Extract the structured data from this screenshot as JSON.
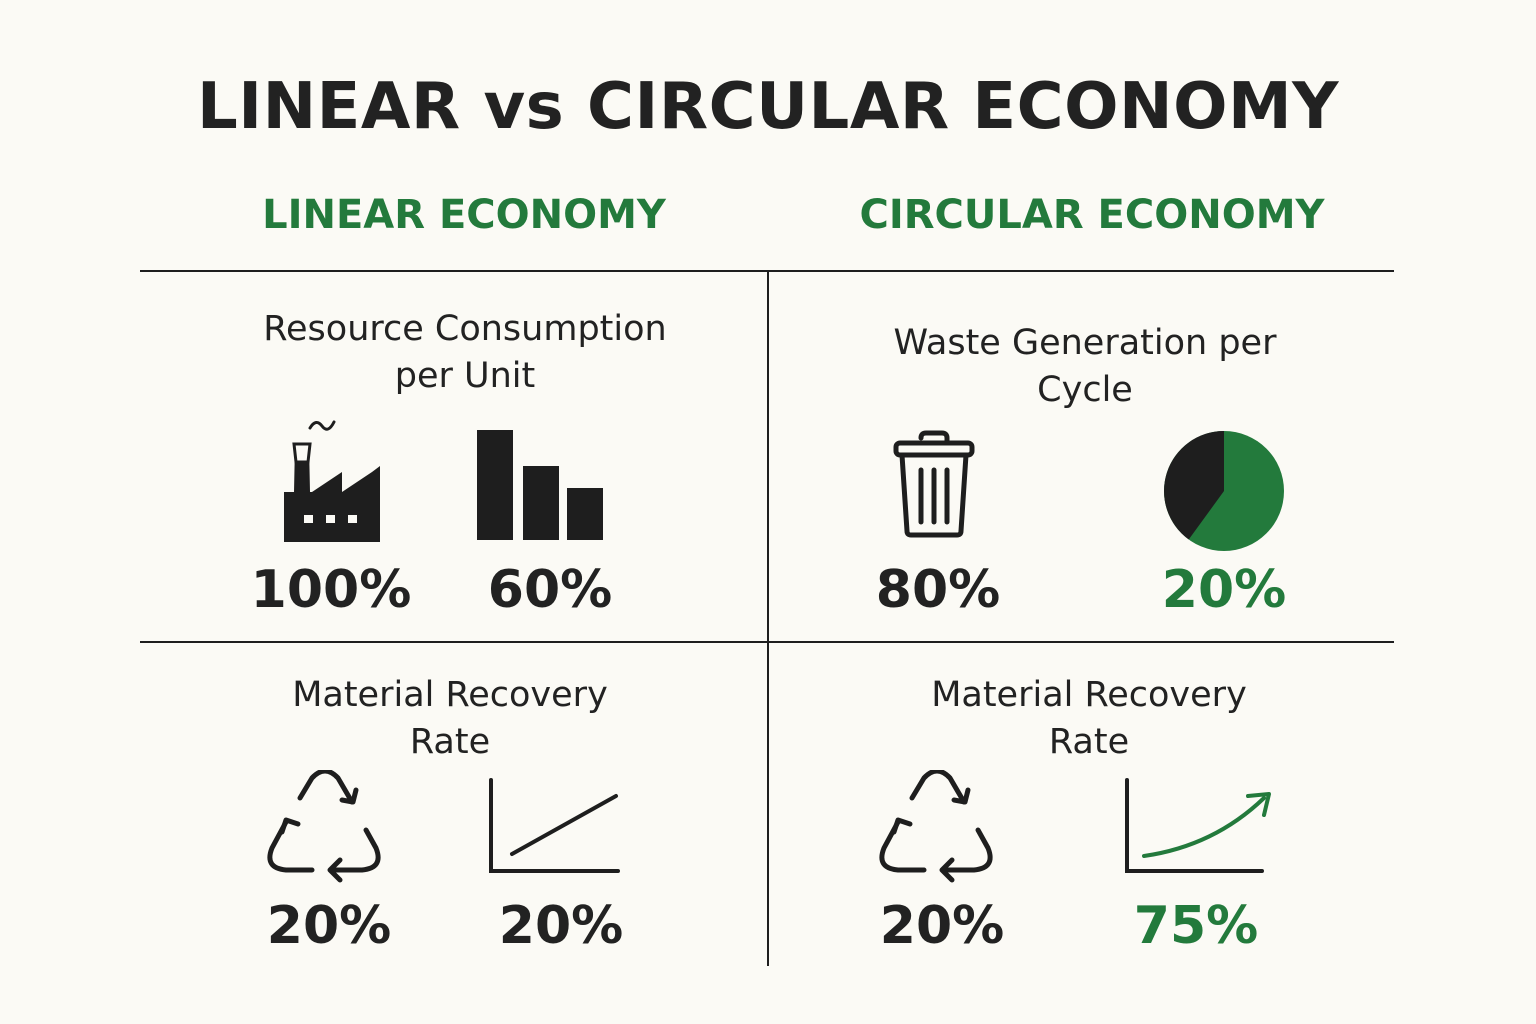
{
  "title": "LINEAR vs CIRCULAR ECONOMY",
  "linear": {
    "heading": "LINEAR ECONOMY",
    "resource": {
      "title_line1": "Resource Consumption",
      "title_line2": "per Unit",
      "icon1": "factory-icon",
      "icon2": "bar-chart-icon",
      "value1": "100%",
      "value2": "60%"
    },
    "recovery": {
      "title_line1": "Material Recovery",
      "title_line2": "Rate",
      "icon1": "recycle-icon",
      "icon2": "line-chart-icon",
      "value1": "20%",
      "value2": "20%"
    }
  },
  "circular": {
    "heading": "CIRCULAR ECONOMY",
    "waste": {
      "title_line1": "Waste Generation per",
      "title_line2": "Cycle",
      "icon1": "trash-can-icon",
      "icon2": "pie-chart-icon",
      "value1": "80%",
      "value2": "20%",
      "pie_green_fraction": 0.6
    },
    "recovery": {
      "title_line1": "Material Recovery",
      "title_line2": "Rate",
      "icon1": "recycle-icon",
      "icon2": "rising-curve-chart-icon",
      "value1": "20%",
      "value2": "75%"
    }
  },
  "colors": {
    "accent_green": "#237a3c",
    "dark": "#1e1e1e",
    "background": "#fbfaf5"
  }
}
